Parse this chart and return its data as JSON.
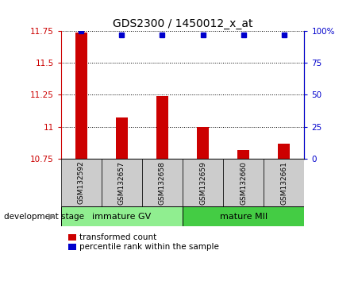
{
  "title": "GDS2300 / 1450012_x_at",
  "samples": [
    "GSM132592",
    "GSM132657",
    "GSM132658",
    "GSM132659",
    "GSM132660",
    "GSM132661"
  ],
  "bar_values": [
    11.74,
    11.07,
    11.24,
    11.0,
    10.82,
    10.87
  ],
  "blue_values": [
    100,
    97,
    97,
    97,
    97,
    97
  ],
  "y_min": 10.75,
  "y_max": 11.75,
  "y_ticks": [
    10.75,
    11.0,
    11.25,
    11.5,
    11.75
  ],
  "y_tick_labels": [
    "10.75",
    "11",
    "11.25",
    "11.5",
    "11.75"
  ],
  "right_y_ticks": [
    0,
    25,
    50,
    75,
    100
  ],
  "right_y_labels": [
    "0",
    "25",
    "50",
    "75",
    "100%"
  ],
  "bar_color": "#cc0000",
  "blue_color": "#0000cc",
  "groups": [
    {
      "label": "immature GV",
      "start": 0,
      "end": 3,
      "color": "#90ee90"
    },
    {
      "label": "mature MII",
      "start": 3,
      "end": 6,
      "color": "#44cc44"
    }
  ],
  "group_label": "development stage",
  "legend_items": [
    {
      "color": "#cc0000",
      "label": "transformed count"
    },
    {
      "color": "#0000cc",
      "label": "percentile rank within the sample"
    }
  ],
  "xlabel_bg_color": "#cccccc",
  "plot_bg_color": "#ffffff",
  "bar_width": 0.3
}
